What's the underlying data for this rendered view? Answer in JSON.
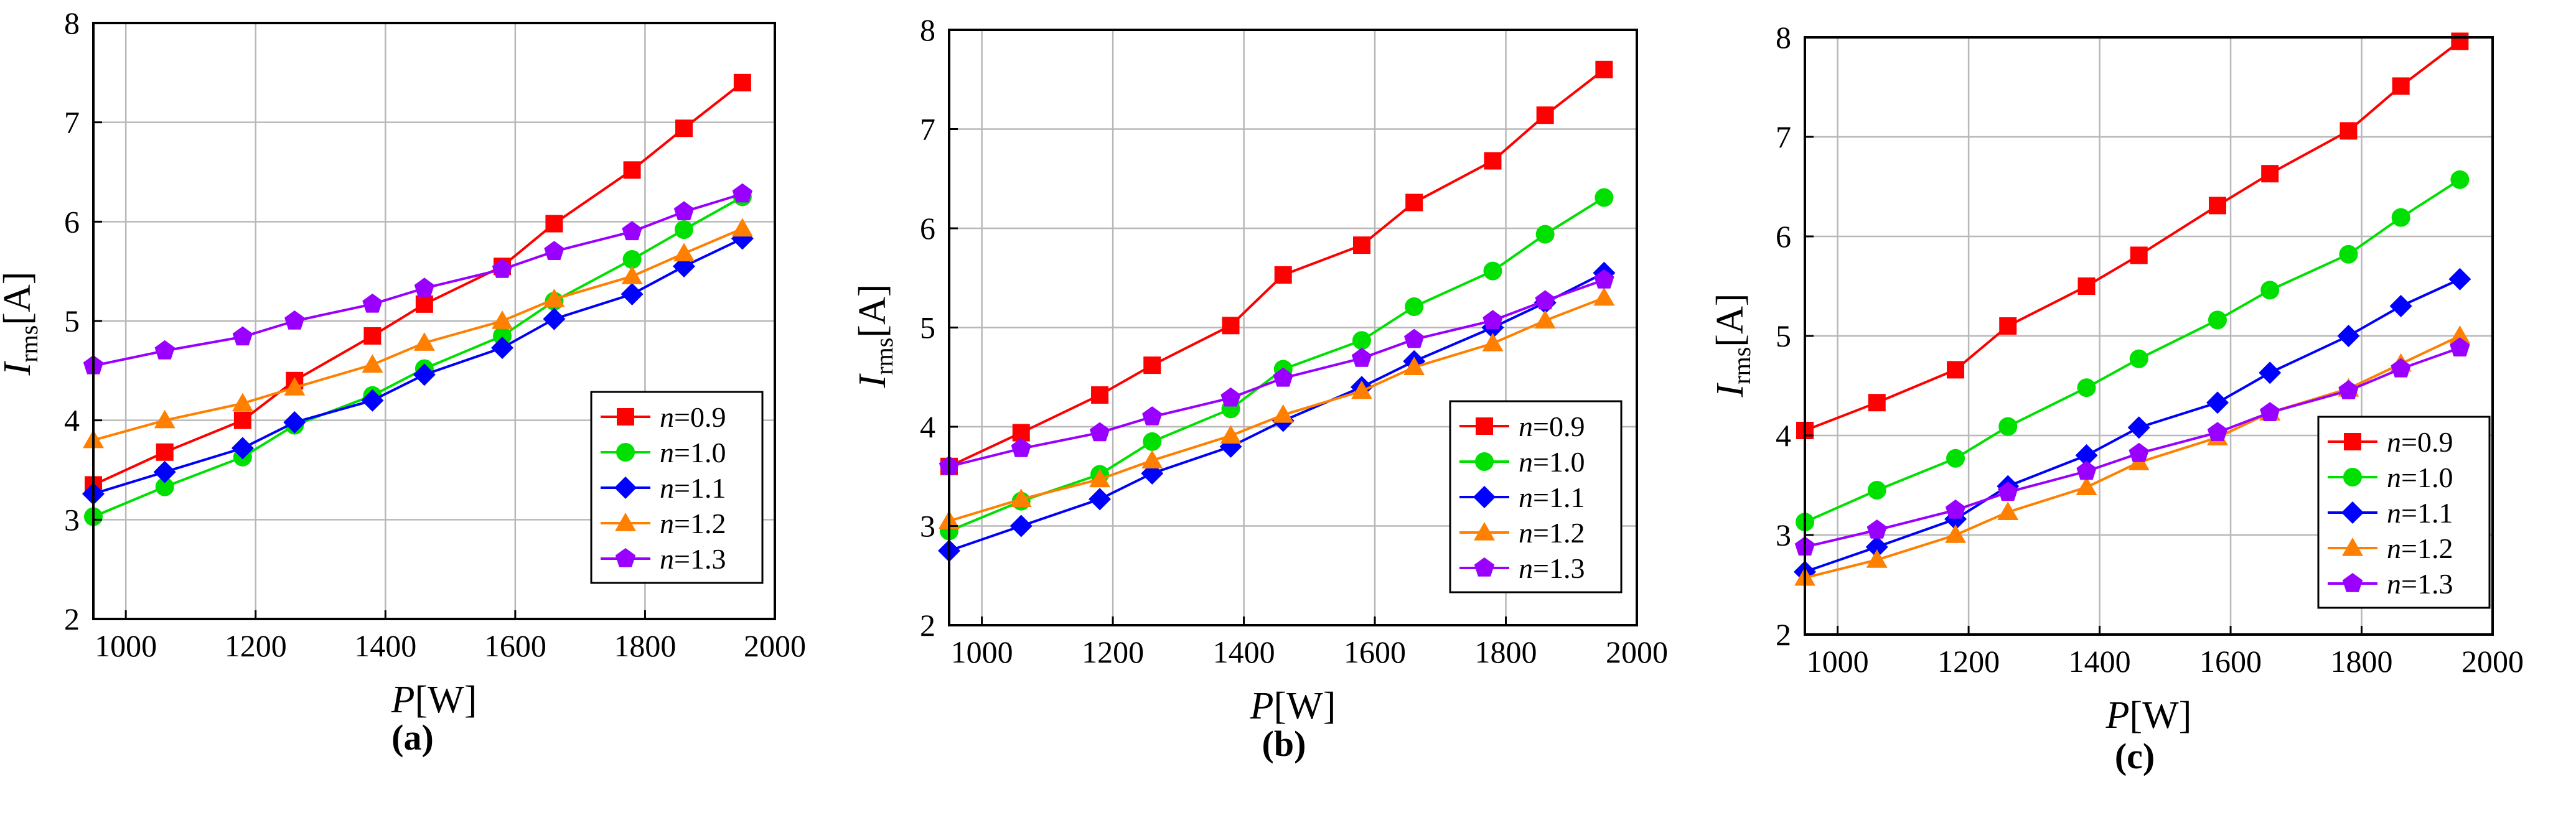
{
  "chart_data": [
    {
      "type": "line",
      "label": "(a)",
      "xlabel": {
        "main": "P",
        "unit": "[W]"
      },
      "ylabel": {
        "main": "I",
        "sub": "rms",
        "unit": "[A]"
      },
      "xlim": [
        950,
        2000
      ],
      "ylim": [
        2,
        8
      ],
      "xticks": [
        "1000",
        "1200",
        "1400",
        "1600",
        "1800",
        "2000"
      ],
      "yticks": [
        "2",
        "3",
        "4",
        "5",
        "6",
        "7",
        "8"
      ],
      "grid": true,
      "legend_position": "bottom-right",
      "x": [
        950,
        1060,
        1180,
        1260,
        1380,
        1460,
        1580,
        1660,
        1780,
        1860,
        1950
      ],
      "series": [
        {
          "name": "n",
          "value": "=0.9",
          "color": "#ff0000",
          "marker": "square",
          "values": [
            3.35,
            3.68,
            4.0,
            4.4,
            4.85,
            5.17,
            5.55,
            5.98,
            6.52,
            6.94,
            7.4
          ]
        },
        {
          "name": "n",
          "value": "=1.0",
          "color": "#00e000",
          "marker": "circle",
          "values": [
            3.03,
            3.33,
            3.63,
            3.95,
            4.25,
            4.52,
            4.85,
            5.2,
            5.62,
            5.92,
            6.25
          ]
        },
        {
          "name": "n",
          "value": "=1.1",
          "color": "#0000ff",
          "marker": "diamond",
          "values": [
            3.26,
            3.48,
            3.72,
            3.98,
            4.2,
            4.46,
            4.73,
            5.02,
            5.27,
            5.55,
            5.83
          ]
        },
        {
          "name": "n",
          "value": "=1.2",
          "color": "#ff8000",
          "marker": "triangle",
          "values": [
            3.8,
            4.0,
            4.17,
            4.33,
            4.56,
            4.78,
            5.0,
            5.22,
            5.45,
            5.68,
            5.93
          ]
        },
        {
          "name": "n",
          "value": "=1.3",
          "color": "#9900ff",
          "marker": "pentagon",
          "values": [
            4.55,
            4.7,
            4.84,
            5.0,
            5.17,
            5.33,
            5.52,
            5.7,
            5.9,
            6.1,
            6.28
          ]
        }
      ]
    },
    {
      "type": "line",
      "label": "(b)",
      "xlabel": {
        "main": "P",
        "unit": "[W]"
      },
      "ylabel": {
        "main": "I",
        "sub": "rms",
        "unit": "[A]"
      },
      "xlim": [
        950,
        2000
      ],
      "ylim": [
        2,
        8
      ],
      "xticks": [
        "1000",
        "1200",
        "1400",
        "1600",
        "1800",
        "2000"
      ],
      "yticks": [
        "2",
        "3",
        "4",
        "5",
        "6",
        "7",
        "8"
      ],
      "grid": true,
      "legend_position": "bottom-right",
      "x": [
        950,
        1060,
        1180,
        1260,
        1380,
        1460,
        1580,
        1660,
        1780,
        1860,
        1950
      ],
      "series": [
        {
          "name": "n",
          "value": "=0.9",
          "color": "#ff0000",
          "marker": "square",
          "values": [
            3.6,
            3.94,
            4.32,
            4.62,
            5.02,
            5.53,
            5.83,
            6.26,
            6.68,
            7.14,
            7.6
          ]
        },
        {
          "name": "n",
          "value": "=1.0",
          "color": "#00e000",
          "marker": "circle",
          "values": [
            2.95,
            3.25,
            3.52,
            3.85,
            4.18,
            4.58,
            4.87,
            5.21,
            5.57,
            5.94,
            6.31
          ]
        },
        {
          "name": "n",
          "value": "=1.1",
          "color": "#0000ff",
          "marker": "diamond",
          "values": [
            2.75,
            3.0,
            3.27,
            3.53,
            3.8,
            4.06,
            4.4,
            4.66,
            5.0,
            5.25,
            5.55
          ]
        },
        {
          "name": "n",
          "value": "=1.2",
          "color": "#ff8000",
          "marker": "triangle",
          "values": [
            3.05,
            3.27,
            3.47,
            3.66,
            3.91,
            4.12,
            4.36,
            4.6,
            4.84,
            5.07,
            5.3
          ]
        },
        {
          "name": "n",
          "value": "=1.3",
          "color": "#9900ff",
          "marker": "pentagon",
          "values": [
            3.6,
            3.78,
            3.94,
            4.1,
            4.29,
            4.49,
            4.69,
            4.88,
            5.07,
            5.27,
            5.48
          ]
        }
      ]
    },
    {
      "type": "line",
      "label": "(c)",
      "xlabel": {
        "main": "P",
        "unit": "[W]"
      },
      "ylabel": {
        "main": "I",
        "sub": "rms",
        "unit": "[A]"
      },
      "xlim": [
        950,
        2000
      ],
      "ylim": [
        2,
        8
      ],
      "xticks": [
        "1000",
        "1200",
        "1400",
        "1600",
        "1800",
        "2000"
      ],
      "yticks": [
        "2",
        "3",
        "4",
        "5",
        "6",
        "7",
        "8"
      ],
      "grid": true,
      "legend_position": "bottom-right",
      "x": [
        950,
        1060,
        1180,
        1260,
        1380,
        1460,
        1580,
        1660,
        1780,
        1860,
        1950
      ],
      "series": [
        {
          "name": "n",
          "value": "=0.9",
          "color": "#ff0000",
          "marker": "square",
          "values": [
            4.05,
            4.33,
            4.66,
            5.1,
            5.5,
            5.81,
            6.31,
            6.63,
            7.06,
            7.51,
            7.96
          ]
        },
        {
          "name": "n",
          "value": "=1.0",
          "color": "#00e000",
          "marker": "circle",
          "values": [
            3.13,
            3.45,
            3.77,
            4.09,
            4.48,
            4.77,
            5.16,
            5.46,
            5.82,
            6.19,
            6.57
          ]
        },
        {
          "name": "n",
          "value": "=1.1",
          "color": "#0000ff",
          "marker": "diamond",
          "values": [
            2.63,
            2.88,
            3.16,
            3.49,
            3.8,
            4.08,
            4.33,
            4.63,
            5.0,
            5.3,
            5.57
          ]
        },
        {
          "name": "n",
          "value": "=1.2",
          "color": "#ff8000",
          "marker": "triangle",
          "values": [
            2.57,
            2.75,
            3.0,
            3.23,
            3.48,
            3.73,
            3.98,
            4.23,
            4.47,
            4.72,
            5.0
          ]
        },
        {
          "name": "n",
          "value": "=1.3",
          "color": "#9900ff",
          "marker": "pentagon",
          "values": [
            2.88,
            3.05,
            3.25,
            3.43,
            3.64,
            3.82,
            4.03,
            4.23,
            4.45,
            4.67,
            4.88
          ]
        }
      ]
    }
  ]
}
